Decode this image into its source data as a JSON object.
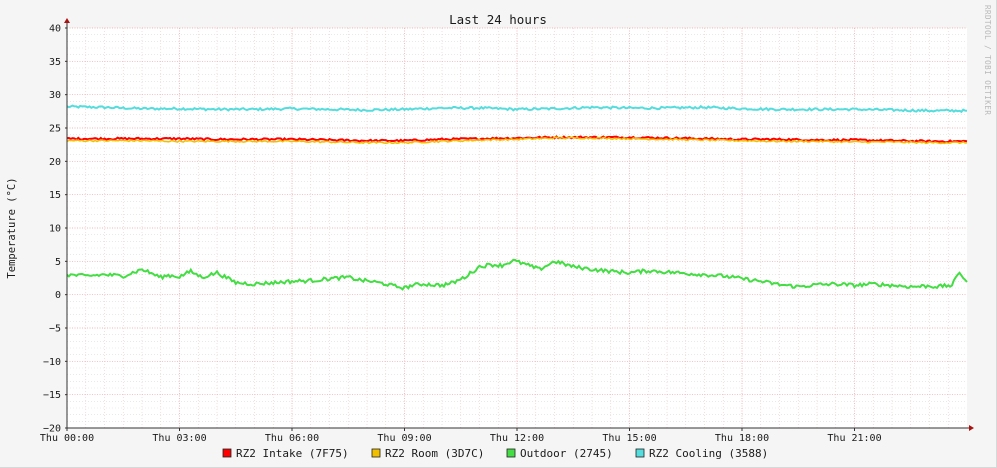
{
  "chart_data": {
    "type": "line",
    "title": "Last 24 hours",
    "ylabel": "Temperature (°C)",
    "watermark": "RRDTOOL / TOBI OETIKER",
    "ylim": [
      -20,
      40
    ],
    "yticks": [
      40,
      35,
      30,
      25,
      20,
      15,
      10,
      5,
      0,
      -5,
      -10,
      -15,
      -20
    ],
    "xlim_hours": [
      0,
      24
    ],
    "xticks": [
      {
        "hour": 0,
        "label": "Thu 00:00"
      },
      {
        "hour": 3,
        "label": "Thu 03:00"
      },
      {
        "hour": 6,
        "label": "Thu 06:00"
      },
      {
        "hour": 9,
        "label": "Thu 09:00"
      },
      {
        "hour": 12,
        "label": "Thu 12:00"
      },
      {
        "hour": 15,
        "label": "Thu 15:00"
      },
      {
        "hour": 18,
        "label": "Thu 18:00"
      },
      {
        "hour": 21,
        "label": "Thu 21:00"
      }
    ],
    "grid": true,
    "legend": "bottom",
    "series": [
      {
        "name": "RZ2 Intake (7F75)",
        "color": "#ff0000",
        "x": [
          0,
          1,
          2,
          3,
          4,
          5,
          6,
          7,
          8,
          9,
          10,
          11,
          12,
          13,
          14,
          15,
          16,
          17,
          18,
          19,
          20,
          21,
          22,
          23,
          24
        ],
        "y": [
          23.4,
          23.4,
          23.4,
          23.4,
          23.3,
          23.3,
          23.3,
          23.2,
          23.1,
          23.1,
          23.3,
          23.4,
          23.5,
          23.6,
          23.6,
          23.6,
          23.5,
          23.4,
          23.3,
          23.3,
          23.2,
          23.2,
          23.1,
          23.0,
          23.0
        ]
      },
      {
        "name": "RZ2 Room (3D7C)",
        "color": "#f0c000",
        "x": [
          0,
          1,
          2,
          3,
          4,
          5,
          6,
          7,
          8,
          9,
          10,
          11,
          12,
          13,
          14,
          15,
          16,
          17,
          18,
          19,
          20,
          21,
          22,
          23,
          24
        ],
        "y": [
          23.1,
          23.1,
          23.1,
          23.0,
          23.0,
          23.0,
          23.0,
          22.9,
          22.8,
          22.8,
          23.0,
          23.2,
          23.3,
          23.5,
          23.5,
          23.4,
          23.3,
          23.2,
          23.1,
          23.0,
          23.0,
          22.9,
          22.9,
          22.8,
          22.8
        ]
      },
      {
        "name": "Outdoor (2745)",
        "color": "#44dd44",
        "x": [
          0,
          0.5,
          1,
          1.5,
          2,
          2.5,
          2.7,
          3,
          3.3,
          3.6,
          4,
          4.5,
          5,
          5.5,
          6,
          6.5,
          7,
          7.5,
          7.8,
          8.1,
          8.5,
          8.8,
          9.0,
          9.2,
          9.5,
          10.0,
          10.3,
          10.6,
          11.0,
          11.3,
          11.6,
          11.9,
          12.2,
          12.6,
          13,
          13.5,
          14,
          14.5,
          15,
          15.5,
          16,
          16.5,
          17,
          17.5,
          18,
          18.5,
          19,
          19.5,
          20,
          20.5,
          21,
          21.5,
          22,
          22.5,
          23,
          23.2,
          23.4,
          23.6,
          23.8,
          24
        ],
        "y": [
          3.0,
          2.8,
          3.0,
          2.8,
          3.8,
          2.6,
          2.9,
          2.7,
          3.5,
          2.6,
          3.3,
          1.8,
          1.6,
          1.8,
          2.0,
          2.1,
          2.4,
          2.6,
          2.2,
          2.0,
          1.6,
          1.2,
          1.0,
          1.4,
          1.6,
          1.4,
          1.8,
          2.6,
          4.2,
          4.5,
          4.4,
          5.1,
          4.6,
          3.8,
          5.0,
          4.2,
          3.8,
          3.5,
          3.3,
          3.6,
          3.4,
          3.2,
          3.0,
          2.8,
          2.4,
          2.0,
          1.5,
          1.2,
          1.5,
          1.6,
          1.4,
          1.6,
          1.4,
          1.2,
          1.3,
          1.2,
          1.3,
          1.4,
          3.4,
          1.9
        ]
      },
      {
        "name": "RZ2 Cooling (3588)",
        "color": "#55dddd",
        "x": [
          0,
          1,
          2,
          3,
          4,
          5,
          6,
          7,
          8,
          9,
          10,
          11,
          12,
          13,
          14,
          15,
          16,
          17,
          18,
          19,
          20,
          21,
          22,
          23,
          24
        ],
        "y": [
          28.2,
          28.1,
          27.9,
          27.9,
          27.8,
          27.8,
          27.9,
          27.8,
          27.7,
          27.8,
          28.0,
          28.0,
          27.8,
          27.9,
          28.1,
          28.0,
          28.0,
          28.1,
          27.9,
          27.8,
          27.8,
          27.8,
          27.7,
          27.6,
          27.6
        ]
      }
    ]
  }
}
